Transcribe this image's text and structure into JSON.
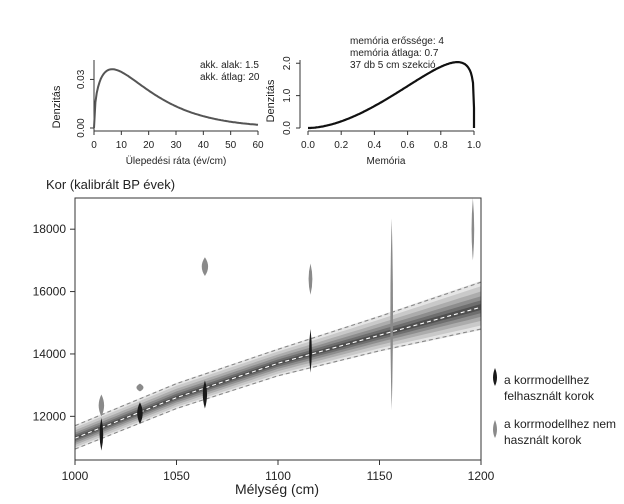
{
  "charts": {
    "prior_rate": {
      "type": "line",
      "xlabel": "Ülepedési ráta (év/cm)",
      "ylabel": "Denzitás",
      "x_ticks": [
        0,
        10,
        20,
        30,
        40,
        50,
        60
      ],
      "y_ticks": [
        0.0,
        0.03
      ],
      "xlim": [
        0,
        60
      ],
      "ylim": [
        0,
        0.042
      ],
      "acc_shape": 1.5,
      "acc_mean": 20,
      "legend": [
        "akk. alak:  1.5",
        "akk. átlag:  20"
      ],
      "color": "#555555"
    },
    "prior_memory": {
      "type": "line",
      "xlabel": "Memória",
      "ylabel": "Denzitás",
      "x_ticks": [
        0.0,
        0.2,
        0.4,
        0.6,
        0.8,
        1.0
      ],
      "y_ticks": [
        0.0,
        1.0,
        2.0
      ],
      "xlim": [
        0,
        1
      ],
      "ylim": [
        0,
        2.1
      ],
      "mem_strength": 4,
      "mem_mean": 0.7,
      "legend": [
        "memória erőssége: 4",
        "memória átlaga: 0.7",
        "37 db 5 cm szekció"
      ],
      "color": "#111111"
    }
  },
  "chart_data": {
    "type": "area",
    "title": "",
    "ylabel": "Kor (kalibrált BP évek)",
    "xlabel": "Mélység (cm)",
    "xlim": [
      1000,
      1200
    ],
    "ylim": [
      10600,
      19000
    ],
    "x_ticks": [
      1000,
      1050,
      1100,
      1150,
      1200
    ],
    "y_ticks": [
      12000,
      14000,
      16000,
      18000
    ],
    "series": [
      {
        "role": "median",
        "x": [
          1000,
          1050,
          1100,
          1150,
          1200
        ],
        "y": [
          11300,
          12600,
          13700,
          14600,
          15500
        ],
        "color": "#ffffff"
      },
      {
        "role": "lower_95",
        "x": [
          1000,
          1050,
          1100,
          1150,
          1200
        ],
        "y": [
          10950,
          12250,
          13300,
          14100,
          14800
        ],
        "color": "#888888"
      },
      {
        "role": "upper_95",
        "x": [
          1000,
          1050,
          1100,
          1150,
          1200
        ],
        "y": [
          11700,
          13050,
          14150,
          15200,
          16300
        ],
        "color": "#888888"
      }
    ],
    "dates_used": [
      {
        "depth": 1013,
        "age_low": 10900,
        "age_high": 11950
      },
      {
        "depth": 1032,
        "age_low": 11750,
        "age_high": 12450
      },
      {
        "depth": 1064,
        "age_low": 12250,
        "age_high": 13150
      },
      {
        "depth": 1116,
        "age_low": 13400,
        "age_high": 14800
      }
    ],
    "dates_not_used": [
      {
        "depth": 1013,
        "age_low": 12000,
        "age_high": 12700
      },
      {
        "depth": 1032,
        "age_low": 12800,
        "age_high": 13050
      },
      {
        "depth": 1064,
        "age_low": 16500,
        "age_high": 17100
      },
      {
        "depth": 1116,
        "age_low": 15900,
        "age_high": 16900
      },
      {
        "depth": 1156,
        "age_low": 12200,
        "age_high": 18350
      },
      {
        "depth": 1196,
        "age_low": 17000,
        "age_high": 19000
      }
    ],
    "legend": {
      "used": "a korrmodellhez\nfelhasznált korok",
      "not_used": "a korrmodellhez nem\nhasznált korok"
    },
    "used_color": "#1a1a1a",
    "not_used_color": "#8a8a8a",
    "band_color": "#000000"
  }
}
